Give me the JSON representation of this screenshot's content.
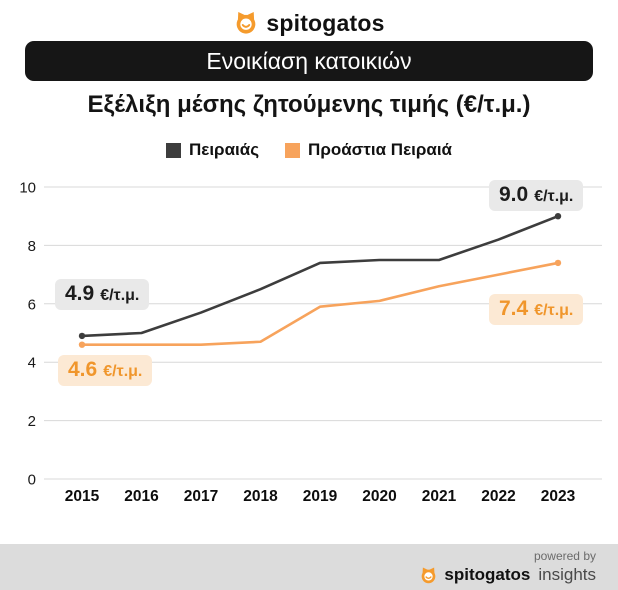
{
  "header": {
    "logo_text": "spitogatos"
  },
  "banner": {
    "label": "Ενοικίαση κατοικιών"
  },
  "title": "Εξέλιξη μέσης ζητούμενης τιμής (€/τ.μ.)",
  "legend": [
    {
      "label": "Πειραιάς",
      "color": "#3d3d3d"
    },
    {
      "label": "Προάστια Πειραιά",
      "color": "#f7a35c"
    }
  ],
  "chart_data": {
    "type": "line",
    "title": "Εξέλιξη μέσης ζητούμενης τιμής (€/τ.μ.)",
    "categories": [
      "2015",
      "2016",
      "2017",
      "2018",
      "2019",
      "2020",
      "2021",
      "2022",
      "2023"
    ],
    "series": [
      {
        "name": "Πειραιάς",
        "color": "#3d3d3d",
        "values": [
          4.9,
          5.0,
          5.7,
          6.5,
          7.4,
          7.5,
          7.5,
          8.2,
          9.0
        ]
      },
      {
        "name": "Προάστια Πειραιά",
        "color": "#f7a35c",
        "values": [
          4.6,
          4.6,
          4.6,
          4.7,
          5.9,
          6.1,
          6.6,
          7.0,
          7.4
        ]
      }
    ],
    "xlabel": "",
    "ylabel": "",
    "ylim": [
      0,
      10
    ],
    "yticks": [
      0,
      2,
      4,
      6,
      8,
      10
    ],
    "grid": true,
    "legend_position": "top"
  },
  "annotations": [
    {
      "value": "4.9",
      "unit": "€/τ.μ.",
      "series": "Πειραιάς"
    },
    {
      "value": "9.0",
      "unit": "€/τ.μ.",
      "series": "Πειραιάς"
    },
    {
      "value": "4.6",
      "unit": "€/τ.μ.",
      "series": "Προάστια Πειραιά"
    },
    {
      "value": "7.4",
      "unit": "€/τ.μ.",
      "series": "Προάστια Πειραιά"
    }
  ],
  "footer": {
    "powered_by": "powered by",
    "brand": "spitogatos",
    "suffix": "insights"
  }
}
